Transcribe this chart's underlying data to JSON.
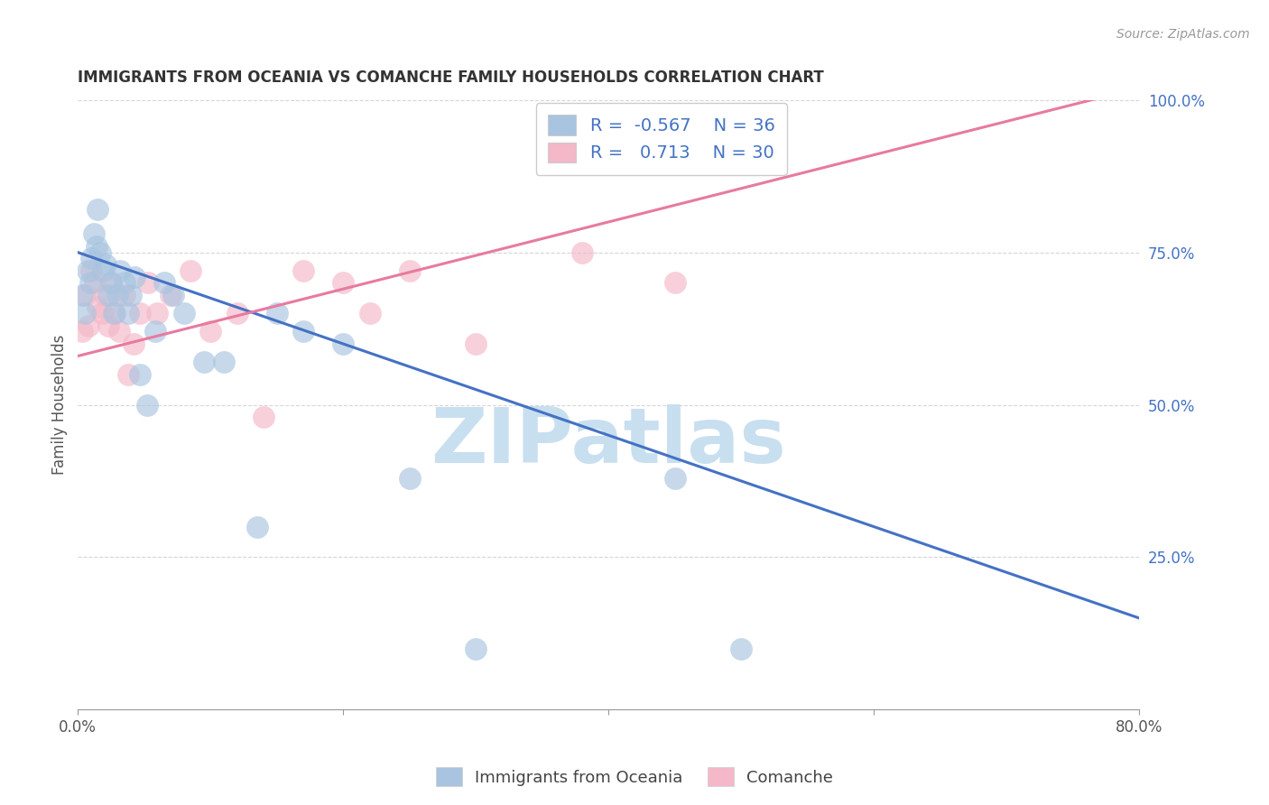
{
  "title": "IMMIGRANTS FROM OCEANIA VS COMANCHE FAMILY HOUSEHOLDS CORRELATION CHART",
  "source_text": "Source: ZipAtlas.com",
  "ylabel": "Family Households",
  "xlabel": "",
  "x_min": 0.0,
  "x_max": 80.0,
  "y_min": 0.0,
  "y_max": 100.0,
  "blue_label": "Immigrants from Oceania",
  "pink_label": "Comanche",
  "blue_R": -0.567,
  "blue_N": 36,
  "pink_R": 0.713,
  "pink_N": 30,
  "blue_color": "#a8c4e0",
  "pink_color": "#f4b8c8",
  "blue_line_color": "#4472c4",
  "pink_line_color": "#e87a9f",
  "background_color": "#ffffff",
  "grid_color": "#bbbbbb",
  "watermark": "ZIPatlas",
  "watermark_color": "#c8dff0",
  "blue_x": [
    0.3,
    0.5,
    0.7,
    0.9,
    1.0,
    1.2,
    1.4,
    1.5,
    1.7,
    1.9,
    2.1,
    2.3,
    2.5,
    2.7,
    3.0,
    3.2,
    3.5,
    3.8,
    4.0,
    4.3,
    4.7,
    5.2,
    5.8,
    6.5,
    7.2,
    8.0,
    9.5,
    11.0,
    13.5,
    15.0,
    17.0,
    20.0,
    25.0,
    30.0,
    45.0,
    50.0
  ],
  "blue_y": [
    68,
    65,
    72,
    70,
    74,
    78,
    76,
    82,
    75,
    72,
    73,
    68,
    70,
    65,
    68,
    72,
    70,
    65,
    68,
    71,
    55,
    50,
    62,
    70,
    68,
    65,
    57,
    57,
    30,
    65,
    62,
    60,
    38,
    10,
    38,
    10
  ],
  "pink_x": [
    0.3,
    0.5,
    0.8,
    1.0,
    1.3,
    1.5,
    1.8,
    2.0,
    2.3,
    2.5,
    2.8,
    3.1,
    3.5,
    3.8,
    4.2,
    4.7,
    5.3,
    6.0,
    7.0,
    8.5,
    10.0,
    12.0,
    14.0,
    17.0,
    20.0,
    22.0,
    25.0,
    30.0,
    38.0,
    45.0
  ],
  "pink_y": [
    62,
    68,
    63,
    72,
    70,
    66,
    65,
    68,
    63,
    70,
    65,
    62,
    68,
    55,
    60,
    65,
    70,
    65,
    68,
    72,
    62,
    65,
    48,
    72,
    70,
    65,
    72,
    60,
    75,
    70
  ]
}
